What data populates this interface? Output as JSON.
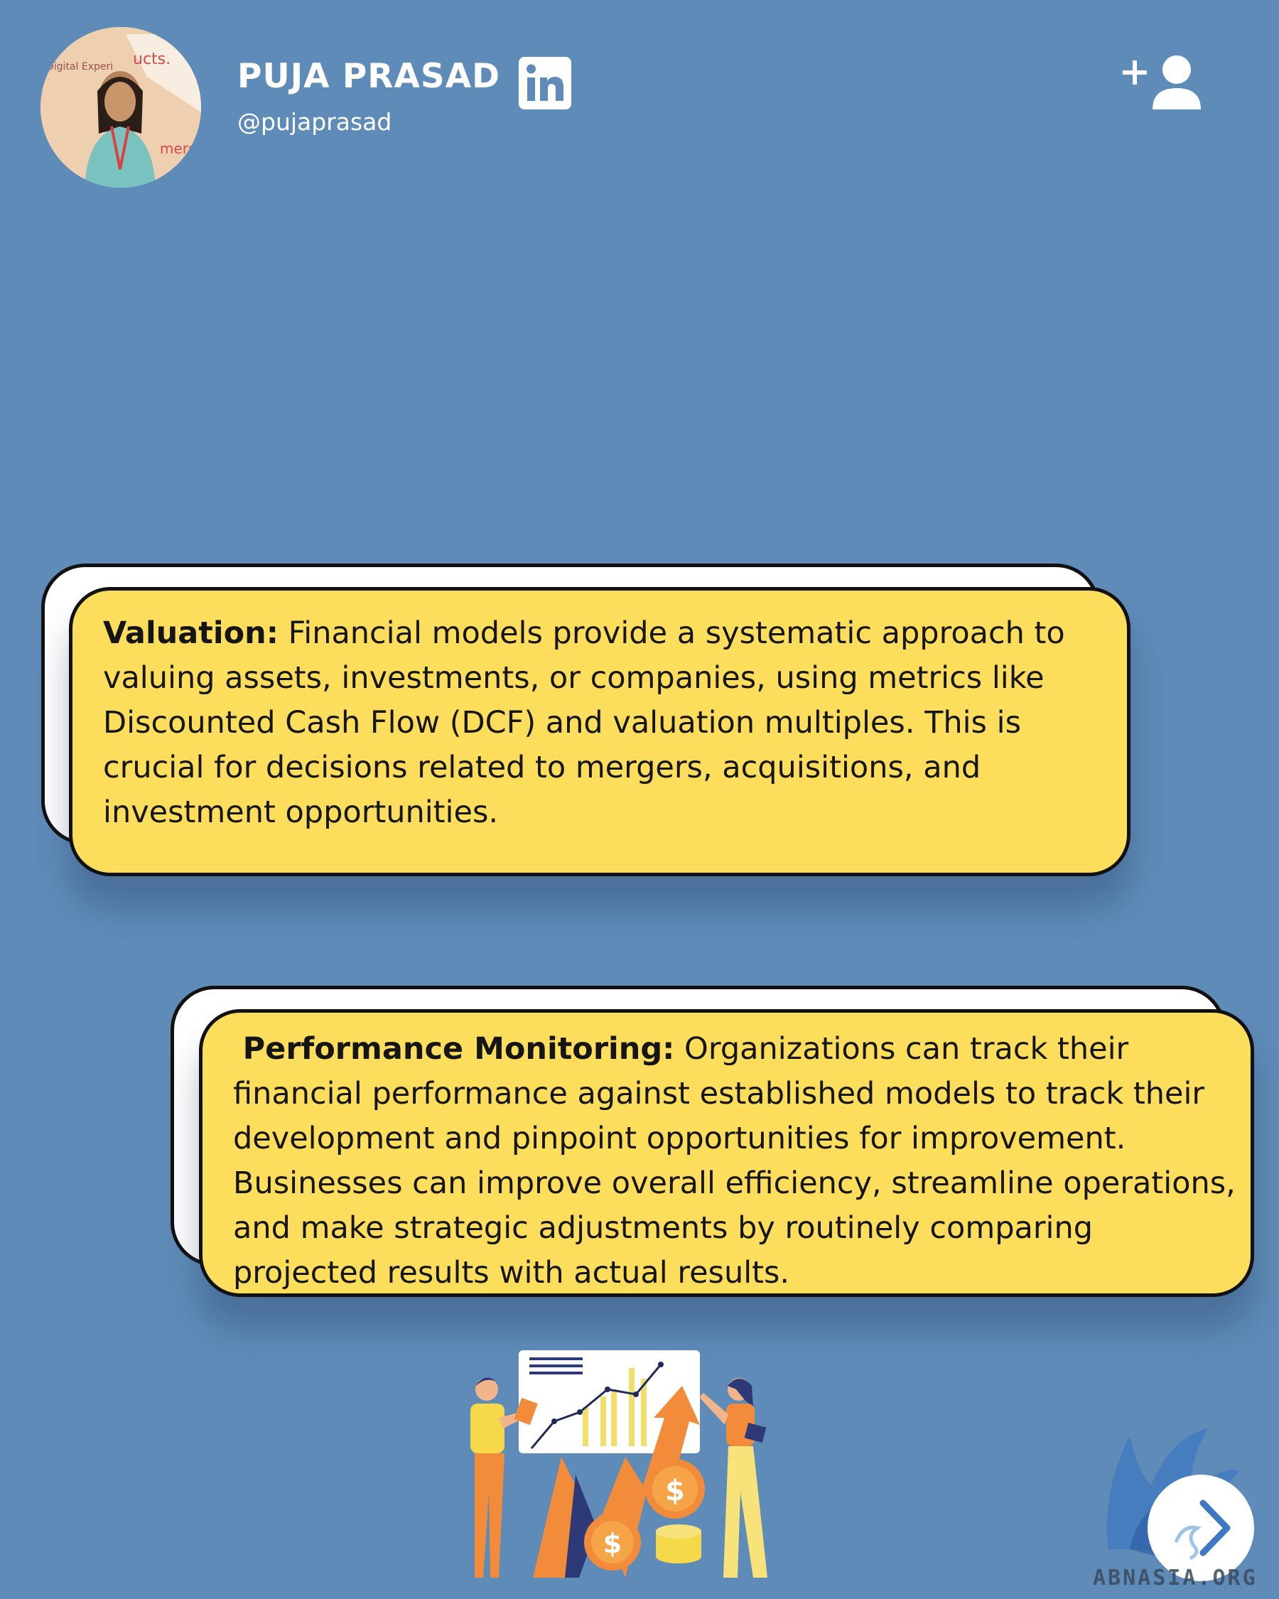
{
  "header": {
    "name": "PUJA PRASAD",
    "handle": "@pujaprasad",
    "linkedin_icon": "linkedin-icon",
    "follow_icon": "add-user-icon"
  },
  "cards": [
    {
      "heading": "Valuation:",
      "body": " Financial models provide a systematic approach to valuing assets, investments, or companies, using metrics like Discounted Cash Flow (DCF) and valuation multiples. This is crucial for decisions related to mergers, acquisitions, and investment opportunities."
    },
    {
      "heading": "Performance Monitoring:",
      "body": " Organizations can track their financial performance against established models to track their development and pinpoint opportunities for improvement. Businesses can improve overall efficiency, streamline operations, and make strategic adjustments by routinely comparing projected results with actual results."
    }
  ],
  "footer": {
    "brand": "ABNASIA.ORG",
    "next_icon": "chevron-right-icon"
  },
  "colors": {
    "background": "#5e8bb8",
    "card": "#fddd5c",
    "card_back": "#ffffff",
    "border": "#111111",
    "accent_orange": "#f28b3a",
    "accent_yellow": "#f5d94a"
  }
}
